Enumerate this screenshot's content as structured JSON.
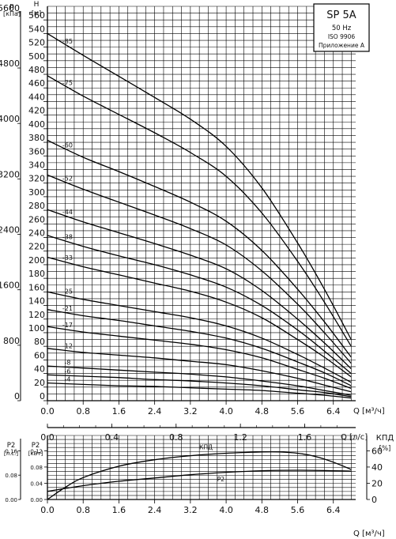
{
  "model_box": {
    "model": "SP 5A",
    "frequency": "50 Hz",
    "standard": "ISO 9906",
    "annex": "Приложение А"
  },
  "axis_labels": {
    "p_title": "p",
    "p_unit": "[кПа]",
    "h_title": "H",
    "h_unit": "[м]",
    "q_main": "Q [м³/ч]",
    "q_ls": "Q [л/с]",
    "q_bottom": "Q [м³/ч]",
    "kpd_title": "КПД",
    "kpd_unit": "[%]",
    "p2_hp_title": "P2",
    "p2_hp_unit": "[л.с.]",
    "p2_kw_title": "P2",
    "p2_kw_unit": "[кВт]"
  },
  "chart_data": [
    {
      "type": "line",
      "title": "SP 5A",
      "xlabel": "Q [м³/ч]",
      "ylabel": "H [м]",
      "xlim": [
        0,
        6.9
      ],
      "ylim": [
        0,
        580
      ],
      "x_ticks": [
        "0.0",
        "0.8",
        "1.6",
        "2.4",
        "3.2",
        "4.0",
        "4.8",
        "5.6",
        "6.4"
      ],
      "h_ticks": [
        "0",
        "20",
        "40",
        "60",
        "80",
        "100",
        "120",
        "140",
        "160",
        "180",
        "200",
        "220",
        "240",
        "260",
        "280",
        "300",
        "320",
        "340",
        "360",
        "380",
        "400",
        "420",
        "440",
        "460",
        "480",
        "500",
        "520",
        "540",
        "560"
      ],
      "p_ticks": [
        "0",
        "800",
        "1600",
        "2400",
        "3200",
        "4000",
        "4800",
        "5600"
      ],
      "grid": true,
      "series": [
        {
          "name": "-85",
          "x": [
            0,
            0.8,
            1.6,
            2.4,
            3.2,
            4.0,
            4.8,
            5.6,
            6.2,
            6.8
          ],
          "y": [
            540,
            508,
            477,
            446,
            414,
            374,
            313,
            232,
            164,
            90
          ]
        },
        {
          "name": "-75",
          "x": [
            0,
            0.8,
            1.6,
            2.4,
            3.2,
            4.0,
            4.8,
            5.6,
            6.2,
            6.8
          ],
          "y": [
            478,
            448,
            421,
            394,
            365,
            330,
            276,
            205,
            145,
            80
          ]
        },
        {
          "name": "-60",
          "x": [
            0,
            0.8,
            1.6,
            2.4,
            3.2,
            4.0,
            4.8,
            5.6,
            6.2,
            6.8
          ],
          "y": [
            383,
            358,
            337,
            315,
            292,
            264,
            221,
            164,
            116,
            64
          ]
        },
        {
          "name": "-52",
          "x": [
            0,
            0.8,
            1.6,
            2.4,
            3.2,
            4.0,
            4.8,
            5.6,
            6.2,
            6.8
          ],
          "y": [
            332,
            311,
            292,
            273,
            253,
            229,
            191,
            142,
            100,
            55
          ]
        },
        {
          "name": "-44",
          "x": [
            0,
            0.8,
            1.6,
            2.4,
            3.2,
            4.0,
            4.8,
            5.6,
            6.2,
            6.8
          ],
          "y": [
            281,
            263,
            247,
            231,
            214,
            194,
            162,
            120,
            85,
            47
          ]
        },
        {
          "name": "-38",
          "x": [
            0,
            0.8,
            1.6,
            2.4,
            3.2,
            4.0,
            4.8,
            5.6,
            6.2,
            6.8
          ],
          "y": [
            243,
            227,
            213,
            200,
            185,
            167,
            140,
            104,
            73,
            40
          ]
        },
        {
          "name": "-33",
          "x": [
            0,
            0.8,
            1.6,
            2.4,
            3.2,
            4.0,
            4.8,
            5.6,
            6.2,
            6.8
          ],
          "y": [
            211,
            197,
            185,
            173,
            161,
            145,
            122,
            90,
            64,
            35
          ]
        },
        {
          "name": "-25",
          "x": [
            0,
            0.8,
            1.6,
            2.4,
            3.2,
            4.0,
            4.8,
            5.6,
            6.2,
            6.8
          ],
          "y": [
            160,
            149,
            140,
            131,
            122,
            110,
            92,
            68,
            48,
            27
          ]
        },
        {
          "name": "-21",
          "x": [
            0,
            0.8,
            1.6,
            2.4,
            3.2,
            4.0,
            4.8,
            5.6,
            6.2,
            6.8
          ],
          "y": [
            134,
            125,
            118,
            110,
            102,
            92,
            77,
            57,
            41,
            22
          ]
        },
        {
          "name": "-17",
          "x": [
            0,
            0.8,
            1.6,
            2.4,
            3.2,
            4.0,
            4.8,
            5.6,
            6.2,
            6.8
          ],
          "y": [
            109,
            101,
            95,
            89,
            83,
            75,
            63,
            46,
            33,
            18
          ]
        },
        {
          "name": "-12",
          "x": [
            0,
            0.8,
            1.6,
            2.4,
            3.2,
            4.0,
            4.8,
            5.6,
            6.2,
            6.8
          ],
          "y": [
            77,
            71,
            67,
            63,
            58,
            53,
            44,
            33,
            23,
            13
          ]
        },
        {
          "name": "-8",
          "x": [
            0,
            0.8,
            1.6,
            2.4,
            3.2,
            4.0,
            4.8,
            5.6,
            6.2,
            6.8
          ],
          "y": [
            51,
            48,
            45,
            42,
            39,
            35,
            29,
            22,
            15,
            8
          ]
        },
        {
          "name": "-6",
          "x": [
            0,
            0.8,
            1.6,
            2.4,
            3.2,
            4.0,
            4.8,
            5.6,
            6.2,
            6.8
          ],
          "y": [
            38,
            36,
            34,
            31,
            29,
            26,
            22,
            16,
            12,
            6
          ]
        },
        {
          "name": "-4",
          "x": [
            0,
            0.8,
            1.6,
            2.4,
            3.2,
            4.0,
            4.8,
            5.6,
            6.2,
            6.8
          ],
          "y": [
            26,
            24,
            22,
            21,
            19,
            17,
            15,
            11,
            8,
            4
          ]
        }
      ]
    },
    {
      "type": "line",
      "xlabel": "Q [м³/ч]",
      "xlim": [
        0,
        6.9
      ],
      "x_ticks": [
        "0.0",
        "0.8",
        "1.6",
        "2.4",
        "3.2",
        "4.0",
        "4.8",
        "5.6",
        "6.4"
      ],
      "q_ls_ticks": [
        "0.0",
        "0.4",
        "0.8",
        "1.2",
        "1.6"
      ],
      "q_ls_range": [
        0,
        1.9167
      ],
      "p2_kw_ticks": [
        "0.00",
        "0.04",
        "0.08",
        "0.12"
      ],
      "p2_kw_range": [
        0,
        0.15
      ],
      "p2_hp_ticks": [
        "0.00",
        "0.08",
        "0.16"
      ],
      "p2_hp_range": [
        0,
        0.2
      ],
      "kpd_ticks": [
        "0",
        "20",
        "40",
        "60"
      ],
      "kpd_range": [
        0,
        75
      ],
      "grid": true,
      "series": [
        {
          "name": "КПД",
          "axis": "kpd",
          "x": [
            0,
            0.4,
            0.8,
            1.6,
            2.4,
            3.2,
            4.0,
            4.8,
            5.2,
            5.6,
            6.0,
            6.4,
            6.8
          ],
          "y": [
            0,
            15,
            27,
            41,
            49,
            54,
            57,
            58.5,
            58.5,
            57,
            53,
            46,
            37
          ]
        },
        {
          "name": "P2",
          "axis": "kw",
          "x": [
            0,
            0.8,
            1.6,
            2.4,
            3.2,
            4.0,
            4.8,
            5.6,
            6.4,
            6.8
          ],
          "y": [
            0.02,
            0.034,
            0.045,
            0.053,
            0.061,
            0.067,
            0.071,
            0.072,
            0.071,
            0.07
          ]
        }
      ]
    }
  ]
}
